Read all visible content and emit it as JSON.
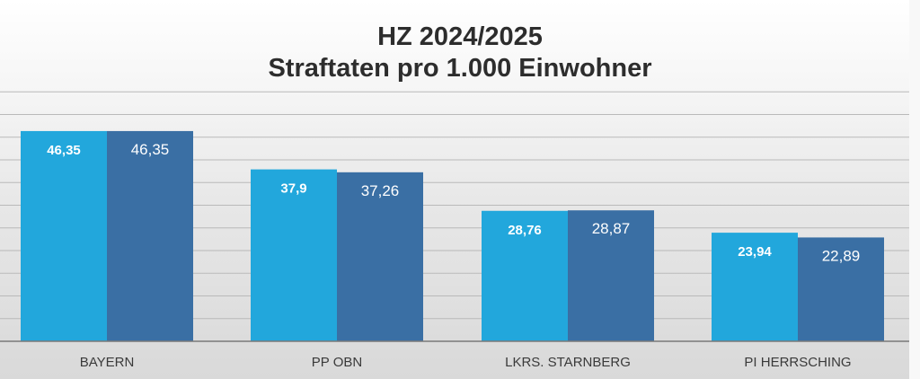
{
  "chart_data": {
    "type": "bar",
    "title": "HZ 2024/2025",
    "subtitle": "Straftaten pro 1.000 Einwohner",
    "categories": [
      "BAYERN",
      "PP OBN",
      "LKRS. STARNBERG",
      "PI HERRSCHING"
    ],
    "series": [
      {
        "values": [
          46.35,
          37.9,
          28.76,
          23.94
        ],
        "labels": [
          "46,35",
          "37,9",
          "28,76",
          "23,94"
        ],
        "color": "#22a7dc"
      },
      {
        "values": [
          46.35,
          37.26,
          28.87,
          22.89
        ],
        "labels": [
          "46,35",
          "37,26",
          "28,87",
          "22,89"
        ],
        "color": "#3a6fa4"
      }
    ],
    "xlabel": "",
    "ylabel": "",
    "ylim": [
      0,
      60
    ],
    "grid": true,
    "legend": "none"
  }
}
